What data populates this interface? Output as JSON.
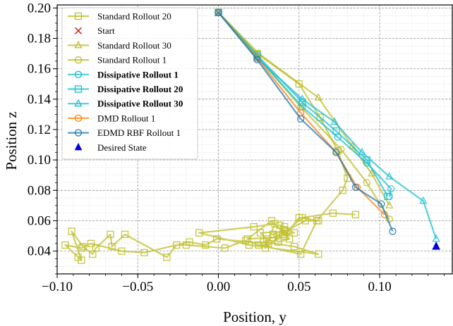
{
  "chart_data": {
    "type": "line",
    "xlabel": "Position, y",
    "ylabel": "Position z",
    "xlim": [
      -0.1,
      0.145
    ],
    "ylim": [
      0.025,
      0.202
    ],
    "xticks": [
      -0.1,
      -0.05,
      0.0,
      0.05,
      0.1
    ],
    "xtick_labels": [
      "−0.10",
      "−0.05",
      "0.00",
      "0.05",
      "0.10"
    ],
    "yticks": [
      0.04,
      0.06,
      0.08,
      0.1,
      0.12,
      0.14,
      0.16,
      0.18,
      0.2
    ],
    "ytick_labels": [
      "0.04",
      "0.06",
      "0.08",
      "0.10",
      "0.12",
      "0.14",
      "0.16",
      "0.18",
      "0.20"
    ],
    "grid": true,
    "legend_position": "top-left",
    "series": [
      {
        "name": "Standard Rollout 20",
        "color": "#bcbd22",
        "marker": "square",
        "bold": false,
        "x": [
          0.0,
          0.024,
          0.05,
          0.063,
          0.074,
          0.08,
          0.077,
          0.061,
          0.051,
          0.025,
          0.017,
          0.004,
          -0.02,
          -0.026,
          -0.032,
          -0.058,
          -0.066,
          -0.067,
          -0.076,
          -0.078,
          -0.084,
          -0.091,
          -0.085,
          -0.087,
          -0.095,
          -0.085,
          -0.079,
          -0.06,
          -0.046,
          -0.018,
          -0.008,
          -0.001,
          0.031,
          0.028,
          0.047,
          0.062,
          0.019,
          -0.012,
          0.022,
          0.035,
          0.029,
          0.04,
          0.041,
          0.034,
          0.037,
          0.044,
          0.033,
          0.018,
          0.034,
          0.054,
          0.062,
          0.05,
          0.041,
          0.038,
          0.041,
          0.047,
          0.03,
          0.026,
          0.042,
          0.052,
          0.071,
          0.085
        ],
        "y": [
          0.197,
          0.17,
          0.15,
          0.128,
          0.106,
          0.088,
          0.08,
          0.06,
          0.038,
          0.044,
          0.047,
          0.042,
          0.044,
          0.044,
          0.036,
          0.051,
          0.043,
          0.051,
          0.042,
          0.038,
          0.043,
          0.053,
          0.034,
          0.036,
          0.044,
          0.042,
          0.045,
          0.04,
          0.039,
          0.046,
          0.044,
          0.048,
          0.045,
          0.046,
          0.043,
          0.038,
          0.044,
          0.052,
          0.056,
          0.058,
          0.042,
          0.051,
          0.054,
          0.051,
          0.046,
          0.048,
          0.06,
          0.048,
          0.049,
          0.06,
          0.06,
          0.062,
          0.05,
          0.057,
          0.056,
          0.052,
          0.048,
          0.052,
          0.053,
          0.062,
          0.065,
          0.064
        ]
      },
      {
        "name": "Start",
        "color": "#d62728",
        "marker": "x",
        "bold": false,
        "x": [
          0.0
        ],
        "y": [
          0.197
        ]
      },
      {
        "name": "Standard Rollout 30",
        "color": "#bcbd22",
        "marker": "triangle",
        "bold": false,
        "x": [
          0.0,
          0.025,
          0.062,
          0.083,
          0.095,
          0.106
        ],
        "y": [
          0.197,
          0.17,
          0.141,
          0.109,
          0.091,
          0.07
        ]
      },
      {
        "name": "Standard Rollout 1",
        "color": "#bcbd22",
        "marker": "circle",
        "bold": false,
        "x": [
          0.0,
          0.024,
          0.051,
          0.076,
          0.092,
          0.106
        ],
        "y": [
          0.197,
          0.168,
          0.135,
          0.107,
          0.085,
          0.061
        ]
      },
      {
        "name": "Dissipative Rollout 1",
        "color": "#17becf",
        "marker": "circle",
        "bold": true,
        "x": [
          0.0,
          0.024,
          0.052,
          0.074,
          0.092,
          0.107,
          0.106
        ],
        "y": [
          0.197,
          0.168,
          0.135,
          0.115,
          0.098,
          0.081,
          0.076
        ]
      },
      {
        "name": "Dissipative Rollout 20",
        "color": "#17becf",
        "marker": "square",
        "bold": true,
        "x": [
          0.0,
          0.024,
          0.052,
          0.073,
          0.092,
          0.105
        ],
        "y": [
          0.197,
          0.169,
          0.138,
          0.119,
          0.1,
          0.076
        ]
      },
      {
        "name": "Dissipative Rollout 30",
        "color": "#17becf",
        "marker": "triangle",
        "bold": true,
        "x": [
          0.0,
          0.024,
          0.052,
          0.072,
          0.089,
          0.106,
          0.127,
          0.135
        ],
        "y": [
          0.197,
          0.167,
          0.14,
          0.125,
          0.105,
          0.089,
          0.073,
          0.048
        ]
      },
      {
        "name": "DMD Rollout 1",
        "color": "#ff7f0e",
        "marker": "circle",
        "bold": false,
        "x": [
          0.0,
          0.024,
          0.051,
          0.073,
          0.086,
          0.103
        ],
        "y": [
          0.197,
          0.167,
          0.131,
          0.105,
          0.082,
          0.064
        ]
      },
      {
        "name": "EDMD RBF Rollout 1",
        "color": "#1f77b4",
        "marker": "circle",
        "bold": false,
        "x": [
          0.0,
          0.024,
          0.051,
          0.073,
          0.085,
          0.101,
          0.108
        ],
        "y": [
          0.197,
          0.166,
          0.127,
          0.105,
          0.082,
          0.071,
          0.053
        ]
      },
      {
        "name": "Desired State",
        "color": "#0000dd",
        "marker": "filled-triangle",
        "bold": false,
        "x": [
          0.135
        ],
        "y": [
          0.043
        ]
      }
    ]
  }
}
